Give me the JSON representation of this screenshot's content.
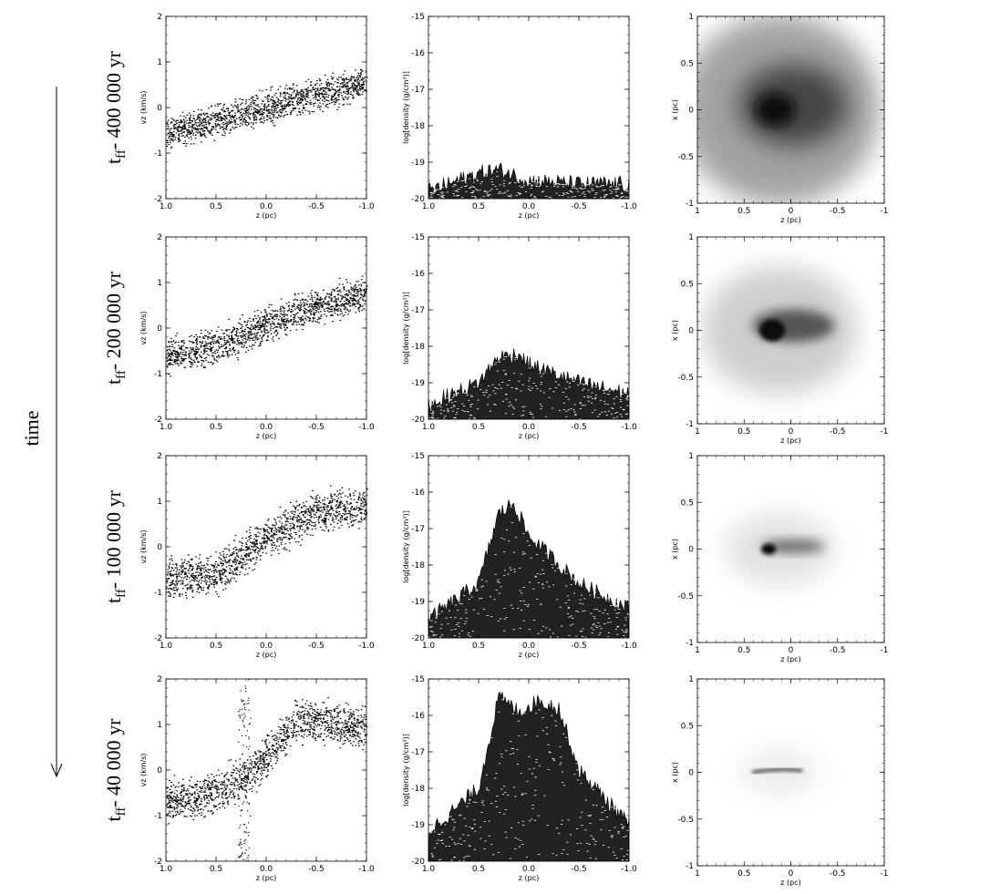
{
  "figure": {
    "time_axis_label": "time",
    "rows": [
      {
        "label_main": "t",
        "label_sub": "ff",
        "label_rest": "- 400 000 yr"
      },
      {
        "label_main": "t",
        "label_sub": "ff",
        "label_rest": "- 200 000 yr"
      },
      {
        "label_main": "t",
        "label_sub": "ff",
        "label_rest": "- 100 000 yr"
      },
      {
        "label_main": "t",
        "label_sub": "ff",
        "label_rest": "- 40 000 yr"
      }
    ]
  },
  "chart_data": [
    {
      "type": "scatter",
      "panel": "velocity",
      "xlabel": "z (pc)",
      "ylabel": "vz (km/s)",
      "xlim": [
        1.0,
        -1.0
      ],
      "ylim": [
        -2,
        2
      ],
      "xticks": [
        "1.0",
        "0.5",
        "0.0",
        "-0.5",
        "-1.0"
      ],
      "yticks": [
        "2",
        "1",
        "0",
        "-1",
        "-2"
      ],
      "series": [
        {
          "row": 0,
          "x": [
            1.0,
            0.5,
            0.0,
            -0.5,
            -1.0
          ],
          "y": [
            -0.55,
            -0.3,
            0.0,
            0.3,
            0.55
          ],
          "spread": 0.28
        },
        {
          "row": 1,
          "x": [
            1.0,
            0.5,
            0.0,
            -0.5,
            -1.0
          ],
          "y": [
            -0.6,
            -0.4,
            0.1,
            0.5,
            0.75
          ],
          "spread": 0.3
        },
        {
          "row": 2,
          "x": [
            1.0,
            0.5,
            0.2,
            0.0,
            -0.5,
            -1.0
          ],
          "y": [
            -0.7,
            -0.6,
            -0.1,
            0.2,
            0.8,
            0.9
          ],
          "spread": 0.35
        },
        {
          "row": 3,
          "x": [
            1.0,
            0.5,
            0.2,
            0.0,
            -0.3,
            -0.5,
            -1.0
          ],
          "y": [
            -0.7,
            -0.5,
            -0.1,
            0.3,
            1.1,
            1.1,
            0.9
          ],
          "spread": 0.35
        }
      ]
    },
    {
      "type": "area",
      "panel": "density",
      "xlabel": "z (pc)",
      "ylabel": "log[density (g/cm³)]",
      "xlim": [
        1.0,
        -1.0
      ],
      "ylim": [
        -20,
        -15
      ],
      "xticks": [
        "1.0",
        "0.5",
        "0.0",
        "-0.5",
        "-1.0"
      ],
      "yticks": [
        "-15",
        "-16",
        "-17",
        "-18",
        "-19",
        "-20"
      ],
      "series": [
        {
          "row": 0,
          "x": [
            1.0,
            0.5,
            0.3,
            0.0,
            -0.5,
            -1.0
          ],
          "y": [
            -19.8,
            -19.3,
            -19.2,
            -19.5,
            -19.6,
            -19.6
          ]
        },
        {
          "row": 1,
          "x": [
            1.0,
            0.5,
            0.3,
            0.1,
            0.0,
            -0.5,
            -1.0
          ],
          "y": [
            -19.6,
            -19.0,
            -18.3,
            -18.2,
            -18.5,
            -19.0,
            -19.3
          ]
        },
        {
          "row": 2,
          "x": [
            1.0,
            0.5,
            0.3,
            0.15,
            0.0,
            -0.5,
            -1.0
          ],
          "y": [
            -19.5,
            -18.5,
            -16.6,
            -16.3,
            -17.2,
            -18.5,
            -19.2
          ]
        },
        {
          "row": 3,
          "x": [
            1.0,
            0.5,
            0.3,
            0.1,
            -0.1,
            -0.3,
            -0.5,
            -1.0
          ],
          "y": [
            -19.2,
            -18.0,
            -15.5,
            -15.9,
            -15.6,
            -15.8,
            -17.5,
            -19.0
          ]
        }
      ]
    },
    {
      "type": "heatmap",
      "panel": "column_density_map",
      "xlabel": "z (pc)",
      "ylabel": "x (pc)",
      "xlim": [
        1,
        -1
      ],
      "ylim": [
        -1,
        1
      ],
      "xticks": [
        "1",
        "0.5",
        "0",
        "-0.5",
        "-1"
      ],
      "yticks": [
        "1",
        "0.5",
        "0",
        "-0.5",
        "-1"
      ],
      "colormap": "grayscale-inverted",
      "rows": [
        {
          "row": 0,
          "concentration": "diffuse"
        },
        {
          "row": 1,
          "concentration": "moderate"
        },
        {
          "row": 2,
          "concentration": "compact"
        },
        {
          "row": 3,
          "concentration": "filament"
        }
      ]
    }
  ]
}
